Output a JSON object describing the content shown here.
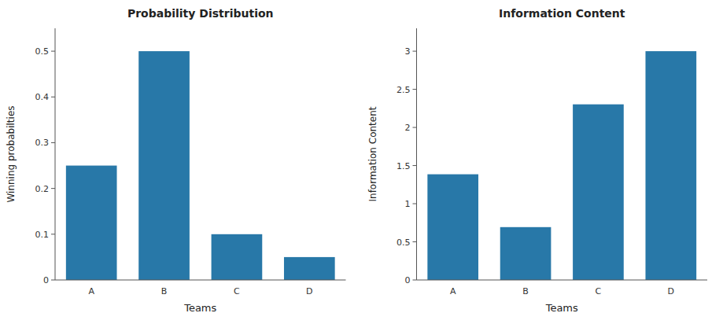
{
  "chart_data": [
    {
      "type": "bar",
      "title": "Probability Distribution",
      "categories": [
        "A",
        "B",
        "C",
        "D"
      ],
      "values": [
        0.25,
        0.5,
        0.1,
        0.05
      ],
      "color": "#2878a8",
      "x_label": "Teams",
      "y_label": "Winning probabilties",
      "ylim": [
        0,
        0.55
      ],
      "yticks": [
        0,
        0.1,
        0.2,
        0.3,
        0.4,
        0.5
      ],
      "grid": false
    },
    {
      "type": "bar",
      "title": "Information Content",
      "categories": [
        "A",
        "B",
        "C",
        "D"
      ],
      "values": [
        1.386,
        0.693,
        2.303,
        3.0
      ],
      "color": "#2878a8",
      "x_label": "Teams",
      "y_label": "Information Content",
      "ylim": [
        0,
        3.3
      ],
      "yticks": [
        0,
        0.5,
        1,
        1.5,
        2,
        2.5,
        3
      ],
      "grid": false
    }
  ]
}
